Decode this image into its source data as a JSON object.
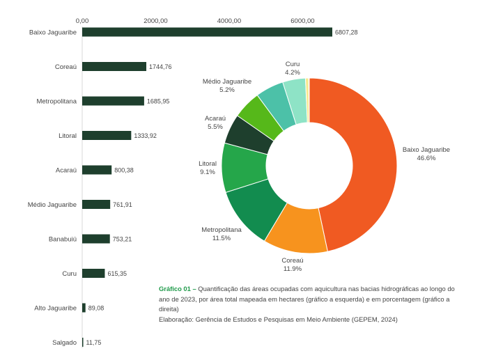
{
  "chart_data": [
    {
      "type": "bar",
      "orientation": "horizontal",
      "categories": [
        "Baixo Jaguaribe",
        "Coreaú",
        "Metropolitana",
        "Litoral",
        "Acaraú",
        "Médio Jaguaribe",
        "Banabuiú",
        "Curu",
        "Alto Jaguaribe",
        "Salgado"
      ],
      "values": [
        6807.28,
        1744.76,
        1685.95,
        1333.92,
        800.38,
        761.91,
        753.21,
        615.35,
        89.08,
        11.75
      ],
      "value_labels": [
        "6807,28",
        "1744,76",
        "1685,95",
        "1333,92",
        "800,38",
        "761,91",
        "753,21",
        "615,35",
        "89,08",
        "11,75"
      ],
      "x_ticks": [
        0,
        2000,
        4000,
        6000
      ],
      "x_tick_labels": [
        "0,00",
        "2000,00",
        "4000,00",
        "6000,00"
      ],
      "xlim": [
        0,
        6807.28
      ],
      "x_axis_position": "top",
      "grid": false,
      "bar_color": "#1e3f2d"
    },
    {
      "type": "pie",
      "style": "donut",
      "slices": [
        {
          "label": "Baixo Jaguaribe",
          "value": 46.6,
          "value_label": "46.6%",
          "color": "#f05a22"
        },
        {
          "label": "Coreaú",
          "value": 11.9,
          "value_label": "11.9%",
          "color": "#f7931e"
        },
        {
          "label": "Metropolitana",
          "value": 11.5,
          "value_label": "11.5%",
          "color": "#128c4f"
        },
        {
          "label": "Litoral",
          "value": 9.1,
          "value_label": "9.1%",
          "color": "#25a64a"
        },
        {
          "label": "Acaraú",
          "value": 5.5,
          "value_label": "5.5%",
          "color": "#1e3f2d"
        },
        {
          "label": "Médio Jaguaribe",
          "value": 5.2,
          "value_label": "5.2%",
          "color": "#56b81a"
        },
        {
          "label": "Banabuiú",
          "value": 5.2,
          "color": "#4cc1a8"
        },
        {
          "label": "Curu",
          "value": 4.2,
          "value_label": "4.2%",
          "color": "#8ee3c6"
        },
        {
          "label": "Alto Jaguaribe",
          "value": 0.6,
          "color": "#f7e98e"
        },
        {
          "label": "Salgado",
          "value": 0.1,
          "color": "#f2e3b3"
        }
      ]
    }
  ],
  "caption": {
    "label": "Gráfico 01 –",
    "text": "Quantificação das áreas ocupadas com aquicultura nas bacias hidrográficas ao longo do ano de 2023, por área total mapeada em hectares (gráfico  a esquerda) e em porcentagem (gráfico a direita)",
    "credit": "Elaboração: Gerência de Estudos e Pesquisas em Meio Ambiente (GEPEM, 2024)"
  }
}
